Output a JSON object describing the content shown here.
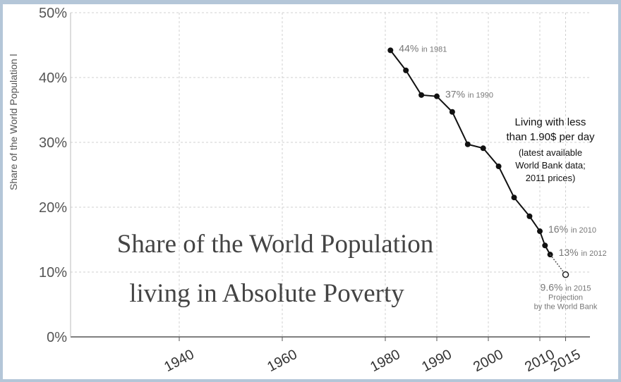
{
  "chart_data": {
    "type": "line",
    "ylabel": "Share of the World Population l",
    "ylim": [
      0,
      50
    ],
    "xlim": [
      1920,
      2016
    ],
    "y_ticks": [
      {
        "value": 0,
        "label": "0%"
      },
      {
        "value": 10,
        "label": "10%"
      },
      {
        "value": 20,
        "label": "20%"
      },
      {
        "value": 30,
        "label": "30%"
      },
      {
        "value": 40,
        "label": "40%"
      },
      {
        "value": 50,
        "label": "50%"
      }
    ],
    "x_ticks": [
      {
        "value": 1940,
        "label": "1940"
      },
      {
        "value": 1960,
        "label": "1960"
      },
      {
        "value": 1980,
        "label": "1980"
      },
      {
        "value": 1990,
        "label": "1990"
      },
      {
        "value": 2000,
        "label": "2000"
      },
      {
        "value": 2010,
        "label": "2010"
      },
      {
        "value": 2015,
        "label": "2015"
      }
    ],
    "grid": true,
    "series": [
      {
        "x": [
          1981,
          1984,
          1987,
          1990,
          1993,
          1996,
          1999,
          2002,
          2005,
          2008,
          2010,
          2011,
          2012
        ],
        "y": [
          44.2,
          41.1,
          37.3,
          37.1,
          34.7,
          29.7,
          29.1,
          26.3,
          21.5,
          18.6,
          16.3,
          14.1,
          12.7
        ]
      }
    ],
    "projection": {
      "x": [
        2012,
        2015
      ],
      "y": [
        12.7,
        9.6
      ]
    },
    "annotations": [
      {
        "value": "44%",
        "suffix": "in 1981",
        "x": 1981,
        "y": 44.2
      },
      {
        "value": "37%",
        "suffix": "in 1990",
        "x": 1990,
        "y": 37.1
      },
      {
        "value": "16%",
        "suffix": "in 2010",
        "x": 2010,
        "y": 16.3
      },
      {
        "value": "13%",
        "suffix": "in 2012",
        "x": 2012,
        "y": 12.7
      },
      {
        "value": "9.6%",
        "suffix": "in 2015",
        "x": 2015,
        "y": 9.6,
        "note_lines": [
          "Projection",
          "by the World Bank"
        ]
      }
    ],
    "legend_text": {
      "line1": "Living with less",
      "line2": "than 1.90$ per day",
      "line3": "(latest available",
      "line4": "World Bank data;",
      "line5": "2011 prices)"
    },
    "title_line1": "Share of the World Population",
    "title_line2": "living in Absolute Poverty"
  }
}
